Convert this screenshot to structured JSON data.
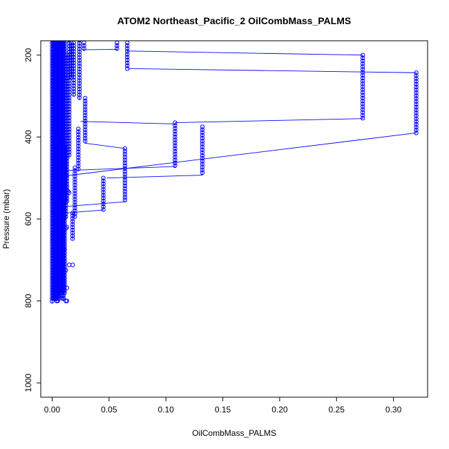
{
  "chart_data": {
    "type": "scatter",
    "title": "ATOM2 Northeast_Pacific_2 OilCombMass_PALMS",
    "xlabel": "OilCombMass_PALMS",
    "ylabel": "Pressure (mbar)",
    "xlim": [
      -0.01,
      0.33
    ],
    "ylim": [
      1035,
      165
    ],
    "y_reversed": true,
    "grid": false,
    "legend": "none",
    "color": "#0000ff",
    "marker": "open-circle",
    "connected": true,
    "x_ticks": [
      {
        "value": 0.0,
        "label": "0.00"
      },
      {
        "value": 0.05,
        "label": "0.05"
      },
      {
        "value": 0.1,
        "label": "0.10"
      },
      {
        "value": 0.15,
        "label": "0.15"
      },
      {
        "value": 0.2,
        "label": "0.20"
      },
      {
        "value": 0.25,
        "label": "0.25"
      },
      {
        "value": 0.3,
        "label": "0.30"
      }
    ],
    "y_ticks": [
      {
        "value": 200,
        "label": "200"
      },
      {
        "value": 400,
        "label": "400"
      },
      {
        "value": 600,
        "label": "600"
      },
      {
        "value": 800,
        "label": "800"
      },
      {
        "value": 1000,
        "label": "1000"
      }
    ],
    "columns": [
      {
        "x": 0.273,
        "p0": 200,
        "p1": 355
      },
      {
        "x": 0.32,
        "p0": 243,
        "p1": 390
      },
      {
        "x": 0.108,
        "p0": 365,
        "p1": 475
      },
      {
        "x": 0.132,
        "p0": 375,
        "p1": 493
      },
      {
        "x": 0.064,
        "p0": 428,
        "p1": 558
      },
      {
        "x": 0.045,
        "p0": 500,
        "p1": 578
      },
      {
        "x": 0.066,
        "p0": 170,
        "p1": 233
      },
      {
        "x": 0.057,
        "p0": 170,
        "p1": 190
      },
      {
        "x": 0.028,
        "p0": 170,
        "p1": 190
      },
      {
        "x": 0.029,
        "p0": 305,
        "p1": 415
      },
      {
        "x": 0.024,
        "p0": 150,
        "p1": 310
      },
      {
        "x": 0.023,
        "p0": 380,
        "p1": 480
      },
      {
        "x": 0.019,
        "p0": 170,
        "p1": 300
      },
      {
        "x": 0.017,
        "p0": 170,
        "p1": 255
      },
      {
        "x": 0.02,
        "p0": 475,
        "p1": 595
      },
      {
        "x": 0.018,
        "p0": 585,
        "p1": 650
      },
      {
        "x": 0.015,
        "p0": 150,
        "p1": 450
      },
      {
        "x": 0.013,
        "p0": 200,
        "p1": 560
      },
      {
        "x": 0.012,
        "p0": 420,
        "p1": 600
      },
      {
        "x": 0.011,
        "p0": 150,
        "p1": 780
      },
      {
        "x": 0.01,
        "p0": 150,
        "p1": 800
      },
      {
        "x": 0.009,
        "p0": 150,
        "p1": 800
      },
      {
        "x": 0.008,
        "p0": 150,
        "p1": 780
      },
      {
        "x": 0.007,
        "p0": 150,
        "p1": 790
      },
      {
        "x": 0.006,
        "p0": 150,
        "p1": 800
      },
      {
        "x": 0.005,
        "p0": 150,
        "p1": 800
      },
      {
        "x": 0.004,
        "p0": 150,
        "p1": 800
      },
      {
        "x": 0.003,
        "p0": 150,
        "p1": 800
      },
      {
        "x": 0.002,
        "p0": 150,
        "p1": 800
      },
      {
        "x": 0.001,
        "p0": 150,
        "p1": 800
      },
      {
        "x": 0.0,
        "p0": 150,
        "p1": 805
      }
    ],
    "points": [
      {
        "x": 0.005,
        "y": 782
      },
      {
        "x": 0.006,
        "y": 782
      },
      {
        "x": 0.012,
        "y": 800
      },
      {
        "x": 0.013,
        "y": 800
      },
      {
        "x": 0.004,
        "y": 800
      },
      {
        "x": 0.005,
        "y": 800
      },
      {
        "x": 0.015,
        "y": 712
      },
      {
        "x": 0.018,
        "y": 712
      },
      {
        "x": 0.012,
        "y": 725
      },
      {
        "x": 0.013,
        "y": 768
      },
      {
        "x": 0.013,
        "y": 620
      },
      {
        "x": 0.012,
        "y": 623
      },
      {
        "x": 0.014,
        "y": 533
      },
      {
        "x": 0.015,
        "y": 536
      }
    ],
    "connectors": [
      {
        "x1": 0.066,
        "y1": 190,
        "x2": 0.273,
        "y2": 200
      },
      {
        "x1": 0.067,
        "y1": 233,
        "x2": 0.32,
        "y2": 243
      },
      {
        "x1": 0.005,
        "y1": 497,
        "x2": 0.32,
        "y2": 390
      },
      {
        "x1": 0.108,
        "y1": 365,
        "x2": 0.273,
        "y2": 355
      },
      {
        "x1": 0.025,
        "y1": 362,
        "x2": 0.108,
        "y2": 368
      },
      {
        "x1": 0.01,
        "y1": 482,
        "x2": 0.108,
        "y2": 472
      },
      {
        "x1": 0.027,
        "y1": 187,
        "x2": 0.057,
        "y2": 186
      },
      {
        "x1": 0.029,
        "y1": 415,
        "x2": 0.064,
        "y2": 428
      },
      {
        "x1": 0.048,
        "y1": 500,
        "x2": 0.132,
        "y2": 493
      },
      {
        "x1": 0.01,
        "y1": 570,
        "x2": 0.064,
        "y2": 558
      },
      {
        "x1": 0.01,
        "y1": 586,
        "x2": 0.045,
        "y2": 578
      },
      {
        "x1": 0.01,
        "y1": 640,
        "x2": 0.012,
        "y2": 676
      },
      {
        "x1": 0.003,
        "y1": 710,
        "x2": 0.009,
        "y2": 740
      }
    ]
  }
}
